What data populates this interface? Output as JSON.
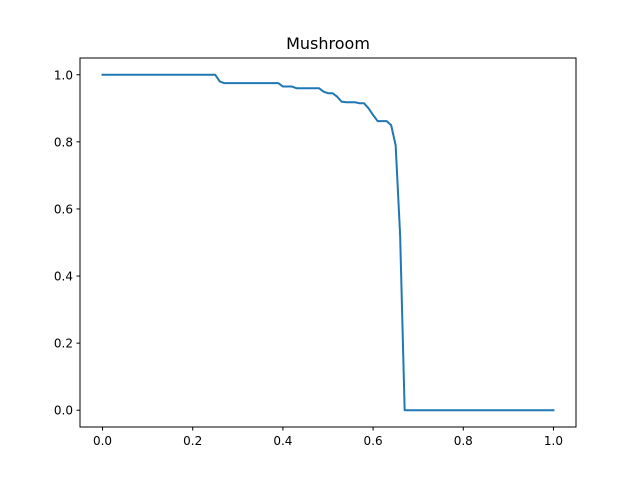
{
  "chart_data": {
    "type": "line",
    "title": "Mushroom",
    "xlabel": "",
    "ylabel": "",
    "xlim": [
      -0.05,
      1.05
    ],
    "ylim": [
      -0.05,
      1.05
    ],
    "grid": false,
    "xticks": [
      0.0,
      0.2,
      0.4,
      0.6,
      0.8,
      1.0
    ],
    "xtick_labels": [
      "0.0",
      "0.2",
      "0.4",
      "0.6",
      "0.8",
      "1.0"
    ],
    "yticks": [
      0.0,
      0.2,
      0.4,
      0.6,
      0.8,
      1.0
    ],
    "ytick_labels": [
      "0.0",
      "0.2",
      "0.4",
      "0.6",
      "0.8",
      "1.0"
    ],
    "series": [
      {
        "color": "#1f77b4",
        "x": [
          0.0,
          0.25,
          0.26,
          0.27,
          0.28,
          0.3,
          0.32,
          0.34,
          0.36,
          0.38,
          0.39,
          0.4,
          0.42,
          0.43,
          0.46,
          0.48,
          0.49,
          0.5,
          0.51,
          0.52,
          0.53,
          0.54,
          0.56,
          0.57,
          0.58,
          0.59,
          0.6,
          0.61,
          0.62,
          0.63,
          0.64,
          0.65,
          0.66,
          0.67,
          0.68,
          0.7,
          0.8,
          0.9,
          1.0
        ],
        "y": [
          1.0,
          1.0,
          0.98,
          0.975,
          0.975,
          0.975,
          0.975,
          0.975,
          0.975,
          0.975,
          0.975,
          0.965,
          0.965,
          0.96,
          0.96,
          0.96,
          0.95,
          0.945,
          0.945,
          0.935,
          0.92,
          0.918,
          0.918,
          0.915,
          0.915,
          0.9,
          0.88,
          0.862,
          0.862,
          0.862,
          0.85,
          0.79,
          0.52,
          0.0,
          0.0,
          0.0,
          0.0,
          0.0,
          0.0
        ]
      }
    ]
  }
}
